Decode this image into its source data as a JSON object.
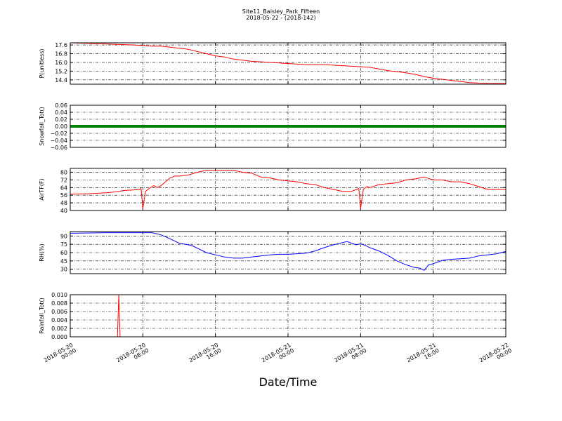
{
  "title": "Site11_Baisley_Park_Fifteen",
  "subtitle": "2018-05-22 - (2018-142)",
  "chart_data": {
    "type": "line",
    "title": "Site11_Baisley_Park_Fifteen",
    "subtitle": "2018-05-22 - (2018-142)",
    "xlabel": "Date/Time",
    "grid": true,
    "x_range_hours": [
      0,
      48
    ],
    "x_ticks": [
      {
        "h": 0,
        "line1": "2018-05-20",
        "line2": "00:00"
      },
      {
        "h": 8,
        "line1": "2018-05-20",
        "line2": "08:00"
      },
      {
        "h": 16,
        "line1": "2018-05-20",
        "line2": "16:00"
      },
      {
        "h": 24,
        "line1": "2018-05-21",
        "line2": "00:00"
      },
      {
        "h": 32,
        "line1": "2018-05-21",
        "line2": "08:00"
      },
      {
        "h": 40,
        "line1": "2018-05-21",
        "line2": "16:00"
      },
      {
        "h": 48,
        "line1": "2018-05-22",
        "line2": "00:00"
      }
    ],
    "panels": [
      {
        "name": "pressure",
        "ylabel": "P(unitless)",
        "color": "#ff0000",
        "ylim": [
          14.0,
          17.8
        ],
        "yticks": [
          14.4,
          15.2,
          16.0,
          16.8,
          17.6
        ],
        "ytick_labels": [
          "14.4",
          "15.2",
          "16.0",
          "16.8",
          "17.6"
        ],
        "data": [
          [
            0,
            17.8
          ],
          [
            4,
            17.7
          ],
          [
            7,
            17.6
          ],
          [
            9,
            17.5
          ],
          [
            10,
            17.5
          ],
          [
            12,
            17.3
          ],
          [
            13,
            17.2
          ],
          [
            14,
            17.0
          ],
          [
            15,
            16.8
          ],
          [
            16,
            16.6
          ],
          [
            17,
            16.5
          ],
          [
            18,
            16.3
          ],
          [
            19,
            16.2
          ],
          [
            20,
            16.1
          ],
          [
            22,
            16.0
          ],
          [
            24,
            15.9
          ],
          [
            26,
            15.8
          ],
          [
            28,
            15.8
          ],
          [
            30,
            15.7
          ],
          [
            32,
            15.6
          ],
          [
            33,
            15.55
          ],
          [
            34,
            15.4
          ],
          [
            35,
            15.25
          ],
          [
            36,
            15.15
          ],
          [
            37,
            15.05
          ],
          [
            38,
            14.9
          ],
          [
            39,
            14.7
          ],
          [
            40,
            14.55
          ],
          [
            41,
            14.45
          ],
          [
            42,
            14.35
          ],
          [
            43,
            14.25
          ],
          [
            44,
            14.15
          ],
          [
            45,
            14.1
          ],
          [
            46,
            14.08
          ],
          [
            47,
            14.07
          ],
          [
            48,
            14.07
          ]
        ]
      },
      {
        "name": "snowfall",
        "ylabel": "Snowfall_Tot()",
        "color": "#008000",
        "thick": true,
        "ylim": [
          -0.06,
          0.06
        ],
        "yticks": [
          -0.06,
          -0.04,
          -0.02,
          0.0,
          0.02,
          0.04,
          0.06
        ],
        "ytick_labels": [
          "−0.06",
          "−0.04",
          "−0.02",
          "0.00",
          "0.02",
          "0.04",
          "0.06"
        ],
        "data": [
          [
            0,
            0
          ],
          [
            48,
            0
          ]
        ]
      },
      {
        "name": "airtemp",
        "ylabel": "AirTF(F)",
        "color": "#ff0000",
        "ylim": [
          40,
          84
        ],
        "yticks": [
          40,
          48,
          56,
          64,
          72,
          80
        ],
        "ytick_labels": [
          "40",
          "48",
          "56",
          "64",
          "72",
          "80"
        ],
        "data": [
          [
            0,
            57
          ],
          [
            2,
            57.5
          ],
          [
            4,
            58.5
          ],
          [
            5,
            59.5
          ],
          [
            6,
            61
          ],
          [
            7,
            61.5
          ],
          [
            7.6,
            62
          ],
          [
            7.8,
            63
          ],
          [
            8,
            42
          ],
          [
            8.3,
            60
          ],
          [
            8.7,
            63
          ],
          [
            9.2,
            66
          ],
          [
            9.6,
            64
          ],
          [
            10,
            66
          ],
          [
            10.5,
            70
          ],
          [
            11,
            74
          ],
          [
            11.5,
            76
          ],
          [
            12,
            76
          ],
          [
            13,
            77
          ],
          [
            14,
            80
          ],
          [
            15,
            82
          ],
          [
            16,
            82
          ],
          [
            17,
            82
          ],
          [
            18,
            82
          ],
          [
            19,
            80
          ],
          [
            20,
            79
          ],
          [
            21,
            75
          ],
          [
            22,
            74
          ],
          [
            23,
            72
          ],
          [
            24,
            71
          ],
          [
            25,
            70
          ],
          [
            26,
            68
          ],
          [
            27,
            67
          ],
          [
            28,
            64
          ],
          [
            29,
            62
          ],
          [
            30,
            60
          ],
          [
            31,
            60
          ],
          [
            31.8,
            63
          ],
          [
            32,
            42
          ],
          [
            32.3,
            62
          ],
          [
            32.7,
            65
          ],
          [
            33,
            64
          ],
          [
            34,
            67
          ],
          [
            35,
            68
          ],
          [
            36,
            69
          ],
          [
            37,
            72
          ],
          [
            38,
            73
          ],
          [
            39,
            75
          ],
          [
            40,
            72
          ],
          [
            41,
            72
          ],
          [
            42,
            70
          ],
          [
            43,
            70
          ],
          [
            44,
            68
          ],
          [
            45,
            65
          ],
          [
            46,
            62
          ],
          [
            47,
            62
          ],
          [
            48,
            62
          ]
        ]
      },
      {
        "name": "rh",
        "ylabel": "RH(%)",
        "color": "#0000ff",
        "ylim": [
          22,
          98
        ],
        "yticks": [
          30,
          45,
          60,
          75,
          90
        ],
        "ytick_labels": [
          "30",
          "45",
          "60",
          "75",
          "90"
        ],
        "data": [
          [
            0,
            95
          ],
          [
            4,
            96
          ],
          [
            8,
            96
          ],
          [
            9,
            96
          ],
          [
            10,
            92
          ],
          [
            11,
            85
          ],
          [
            12,
            77
          ],
          [
            13,
            74
          ],
          [
            13.5,
            72
          ],
          [
            14,
            68
          ],
          [
            15,
            60
          ],
          [
            16,
            56
          ],
          [
            17,
            52
          ],
          [
            18,
            50
          ],
          [
            19,
            50
          ],
          [
            20,
            52
          ],
          [
            21,
            54
          ],
          [
            22,
            56
          ],
          [
            23,
            57
          ],
          [
            24,
            57
          ],
          [
            25,
            58
          ],
          [
            26,
            59
          ],
          [
            27,
            63
          ],
          [
            28,
            69
          ],
          [
            29,
            74
          ],
          [
            30,
            78
          ],
          [
            30.5,
            80
          ],
          [
            31,
            77
          ],
          [
            31.5,
            74
          ],
          [
            32,
            76
          ],
          [
            32.5,
            73
          ],
          [
            33,
            69
          ],
          [
            34,
            63
          ],
          [
            35,
            55
          ],
          [
            36,
            45
          ],
          [
            37,
            38
          ],
          [
            38,
            33
          ],
          [
            38.5,
            32
          ],
          [
            39,
            28
          ],
          [
            39.5,
            38
          ],
          [
            40,
            40
          ],
          [
            41,
            46
          ],
          [
            42,
            48
          ],
          [
            43,
            49
          ],
          [
            44,
            50
          ],
          [
            45,
            54
          ],
          [
            46,
            56
          ],
          [
            47,
            58
          ],
          [
            48,
            62
          ]
        ]
      },
      {
        "name": "rainfall",
        "ylabel": "Rainfall_Tot()",
        "color": "#ff0000",
        "ylim": [
          0,
          0.01
        ],
        "yticks": [
          0.0,
          0.002,
          0.004,
          0.006,
          0.008,
          0.01
        ],
        "ytick_labels": [
          "0.000",
          "0.002",
          "0.004",
          "0.006",
          "0.008",
          "0.010"
        ],
        "data": [
          [
            0,
            0
          ],
          [
            5.2,
            0
          ],
          [
            5.35,
            0.01
          ],
          [
            5.5,
            0
          ],
          [
            48,
            0
          ]
        ]
      }
    ]
  }
}
